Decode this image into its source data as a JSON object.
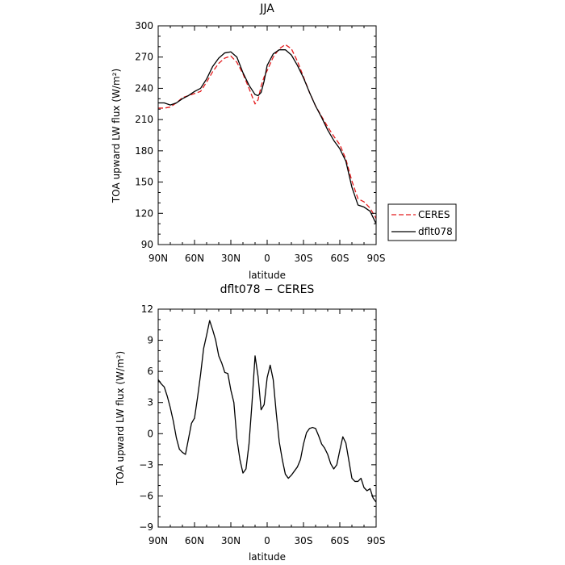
{
  "chart_data": [
    {
      "type": "line",
      "title": "JJA",
      "xlabel": "latitude",
      "ylabel": "TOA upward LW flux (W/m²)",
      "xlim": [
        90,
        -90
      ],
      "ylim": [
        90,
        300
      ],
      "x_ticks": [
        90,
        60,
        30,
        0,
        -30,
        -60,
        -90
      ],
      "x_tick_labels": [
        "90N",
        "60N",
        "30N",
        "0",
        "30S",
        "60S",
        "90S"
      ],
      "y_ticks": [
        90,
        120,
        150,
        180,
        210,
        240,
        270,
        300
      ],
      "y_tick_labels": [
        "90",
        "120",
        "150",
        "180",
        "210",
        "240",
        "270",
        "300"
      ],
      "legend": {
        "placement": "right, outside plot"
      },
      "series": [
        {
          "name": "CERES",
          "color": "#e41a1c",
          "dash": "dashed",
          "x": [
            90,
            85,
            80,
            75,
            70,
            65,
            60,
            55,
            50,
            45,
            40,
            35,
            30,
            25,
            20,
            15,
            10,
            7.5,
            5,
            2.5,
            0,
            -5,
            -10,
            -15,
            -20,
            -25,
            -30,
            -35,
            -40,
            -45,
            -50,
            -55,
            -60,
            -65,
            -70,
            -75,
            -80,
            -85,
            -90
          ],
          "y": [
            221,
            221,
            222,
            226,
            231,
            233,
            235,
            237,
            246,
            256,
            264,
            269,
            271,
            265,
            254,
            240,
            225,
            229,
            242,
            251,
            257,
            270,
            278,
            282,
            278,
            266,
            251,
            236,
            223,
            213,
            203,
            194,
            186,
            172,
            151,
            134,
            131,
            125,
            115
          ]
        },
        {
          "name": "dflt078",
          "color": "#000000",
          "dash": "solid",
          "x": [
            90,
            85,
            80,
            75,
            70,
            65,
            60,
            55,
            50,
            45,
            40,
            35,
            30,
            25,
            20,
            15,
            10,
            7.5,
            5,
            2.5,
            0,
            -5,
            -10,
            -15,
            -20,
            -25,
            -30,
            -35,
            -40,
            -45,
            -50,
            -55,
            -60,
            -65,
            -70,
            -75,
            -80,
            -85,
            -90
          ],
          "y": [
            226,
            226,
            224,
            226,
            230,
            233,
            237,
            240,
            249,
            261,
            269,
            274,
            275,
            270,
            255,
            243,
            234,
            233,
            236,
            247,
            262,
            273,
            277,
            277,
            272,
            262,
            250,
            236,
            223,
            212,
            200,
            190,
            182,
            170,
            145,
            128,
            126,
            122,
            110
          ]
        }
      ]
    },
    {
      "type": "line",
      "title": "dflt078 − CERES",
      "xlabel": "latitude",
      "ylabel": "TOA upward LW flux (W/m²)",
      "xlim": [
        90,
        -90
      ],
      "ylim": [
        -9,
        12
      ],
      "x_ticks": [
        90,
        60,
        30,
        0,
        -30,
        -60,
        -90
      ],
      "x_tick_labels": [
        "90N",
        "60N",
        "30N",
        "0",
        "30S",
        "60S",
        "90S"
      ],
      "y_ticks": [
        -9,
        -6,
        -3,
        0,
        3,
        6,
        9,
        12
      ],
      "y_tick_labels": [
        "−9",
        "−6",
        "−3",
        "0",
        "3",
        "6",
        "9",
        "12"
      ],
      "series": [
        {
          "color": "#000000",
          "dash": "solid",
          "x": [
            90,
            87.5,
            85,
            82.5,
            80,
            77.5,
            75,
            72.5,
            70,
            67.5,
            65,
            62.5,
            60,
            57.5,
            55,
            52.5,
            50,
            47.5,
            45,
            42.5,
            40,
            37.5,
            35,
            32.5,
            30,
            27.5,
            25,
            22.5,
            20,
            17.5,
            15,
            12.5,
            10,
            7.5,
            5,
            2.5,
            0,
            -2.5,
            -5,
            -7.5,
            -10,
            -12.5,
            -15,
            -17.5,
            -20,
            -22.5,
            -25,
            -27.5,
            -30,
            -32.5,
            -35,
            -37.5,
            -40,
            -42.5,
            -45,
            -47.5,
            -50,
            -52.5,
            -55,
            -57.5,
            -60,
            -62.5,
            -65,
            -67.5,
            -70,
            -72.5,
            -75,
            -77.5,
            -80,
            -82.5,
            -85,
            -87.5,
            -90
          ],
          "y": [
            5.2,
            4.8,
            4.5,
            3.6,
            2.5,
            1.2,
            -0.4,
            -1.5,
            -1.8,
            -2.0,
            -0.5,
            1.0,
            1.5,
            3.5,
            5.7,
            8.2,
            9.5,
            10.9,
            10.0,
            9.0,
            7.5,
            6.8,
            5.9,
            5.8,
            4.2,
            3.0,
            -0.5,
            -2.5,
            -3.8,
            -3.4,
            -1.0,
            3.0,
            7.5,
            5.5,
            2.3,
            2.8,
            5.4,
            6.6,
            5.2,
            2.0,
            -0.8,
            -2.5,
            -3.9,
            -4.3,
            -4.0,
            -3.6,
            -3.2,
            -2.5,
            -1.0,
            0.1,
            0.5,
            0.6,
            0.5,
            -0.2,
            -1.0,
            -1.4,
            -2.0,
            -2.9,
            -3.4,
            -3.0,
            -1.6,
            -0.3,
            -0.9,
            -2.6,
            -4.3,
            -4.6,
            -4.6,
            -4.3,
            -5.2,
            -5.5,
            -5.3,
            -6.2,
            -6.6
          ]
        }
      ]
    }
  ]
}
